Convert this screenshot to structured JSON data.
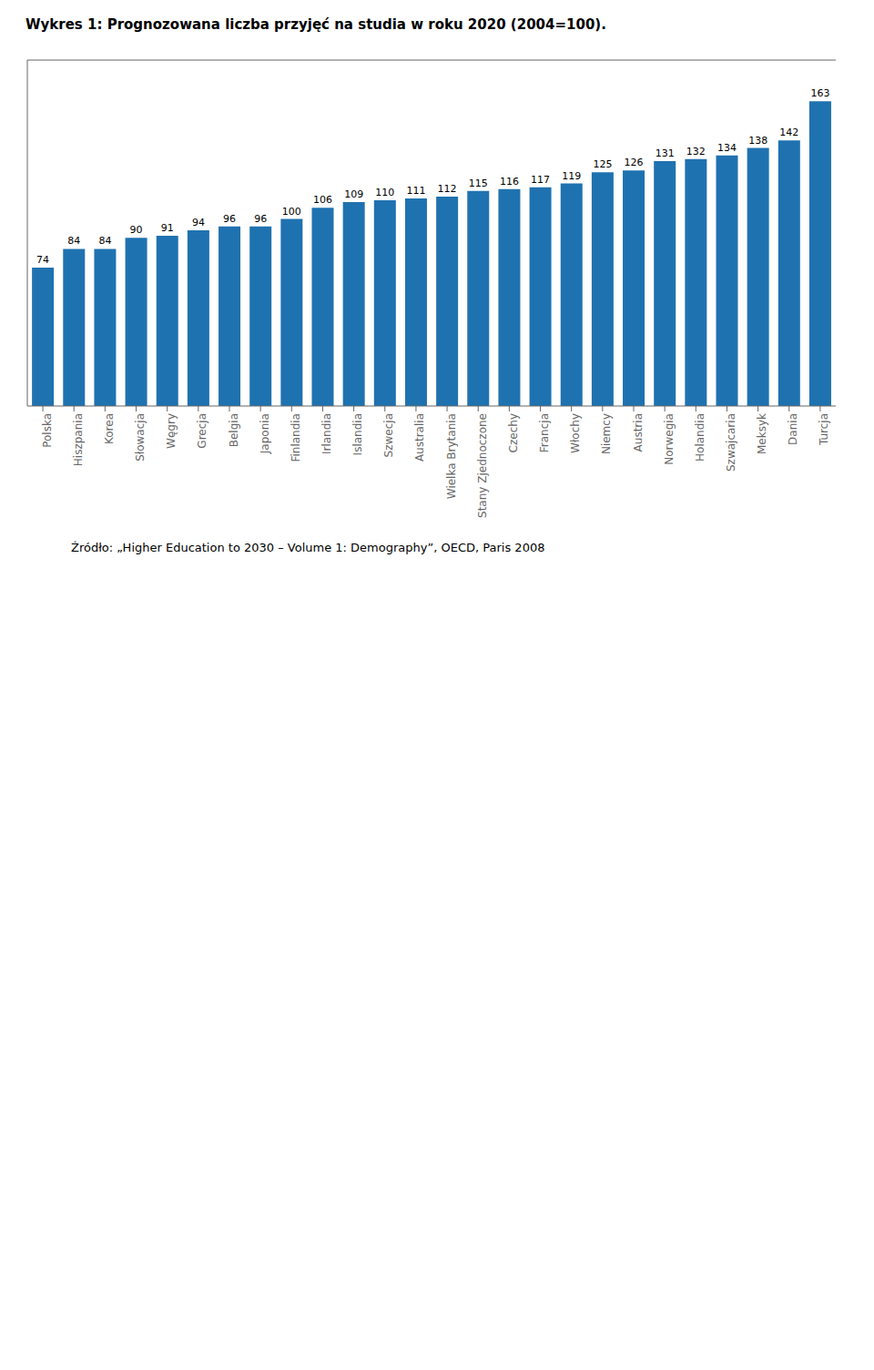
{
  "chart_data": {
    "type": "bar",
    "title": "Wykres 1: Prognozowana liczba przyjęć na studia w roku 2020 (2004=100).",
    "categories": [
      "Polska",
      "Hiszpania",
      "Korea",
      "Słowacja",
      "Węgry",
      "Grecja",
      "Belgia",
      "Japonia",
      "Finlandia",
      "Irlandia",
      "Islandia",
      "Szwecja",
      "Australia",
      "Wielka Brytania",
      "Stany Zjednoczone",
      "Czechy",
      "Francja",
      "Włochy",
      "Niemcy",
      "Austria",
      "Norwegia",
      "Holandia",
      "Szwajcaria",
      "Meksyk",
      "Dania",
      "Turcja"
    ],
    "values": [
      74,
      84,
      84,
      90,
      91,
      94,
      96,
      96,
      100,
      106,
      109,
      110,
      111,
      112,
      115,
      116,
      117,
      119,
      125,
      126,
      131,
      132,
      134,
      138,
      142,
      163
    ],
    "color": "#1F72B0",
    "ylim": [
      0,
      185
    ],
    "grid": false,
    "data_labels": true,
    "tick_labels": "x",
    "annotations": [
      "Źródło: „Higher Education to 2030 – Volume 1: Demography”, OECD, Paris 2008"
    ]
  }
}
